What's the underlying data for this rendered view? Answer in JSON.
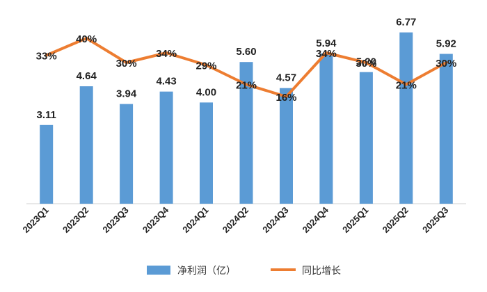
{
  "chart_data": {
    "type": "bar",
    "categories": [
      "2023Q1",
      "2023Q2",
      "2023Q3",
      "2023Q4",
      "2024Q1",
      "2024Q2",
      "2024Q3",
      "2024Q4",
      "2025Q1",
      "2025Q2",
      "2025Q3"
    ],
    "series": [
      {
        "name": "净利润（亿）",
        "type": "bar",
        "axis": "left",
        "values": [
          3.11,
          4.64,
          3.94,
          4.43,
          4.0,
          5.6,
          4.57,
          5.94,
          5.2,
          6.77,
          5.92
        ],
        "labels": [
          "3.11",
          "4.64",
          "3.94",
          "4.43",
          "4.00",
          "5.60",
          "4.57",
          "5.94",
          "5.20",
          "6.77",
          "5.92"
        ],
        "color": "#5B9BD5"
      },
      {
        "name": "同比增长",
        "type": "line",
        "axis": "right",
        "values": [
          33,
          40,
          30,
          34,
          29,
          21,
          16,
          34,
          30,
          21,
          30
        ],
        "labels": [
          "33%",
          "40%",
          "30%",
          "34%",
          "29%",
          "21%",
          "16%",
          "34%",
          "30%",
          "21%",
          "30%"
        ],
        "color": "#ED7D31"
      }
    ],
    "ylim_left": [
      0,
      7.5
    ],
    "ylim_right": [
      -28,
      50
    ],
    "grid": false,
    "legend": "bottom"
  }
}
